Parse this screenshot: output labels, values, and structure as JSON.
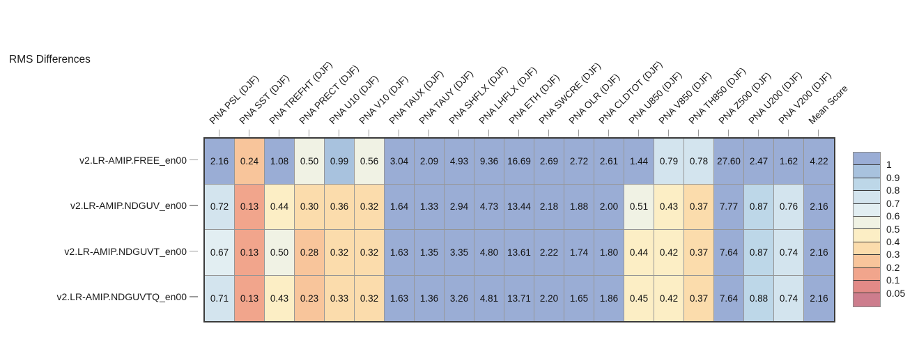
{
  "chart_data": {
    "type": "heatmap",
    "title": "RMS Differences",
    "columns": [
      "PNA PSL (DJF)",
      "PNA SST (DJF)",
      "PNA TREFHT (DJF)",
      "PNA PRECT (DJF)",
      "PNA U10 (DJF)",
      "PNA V10 (DJF)",
      "PNA TAUX (DJF)",
      "PNA TAUY (DJF)",
      "PNA SHFLX (DJF)",
      "PNA LHFLX (DJF)",
      "PNA ETH (DJF)",
      "PNA SWCRE (DJF)",
      "PNA OLR (DJF)",
      "PNA CLDTOT (DJF)",
      "PNA U850 (DJF)",
      "PNA V850 (DJF)",
      "PNA TH850 (DJF)",
      "PNA Z500 (DJF)",
      "PNA U200 (DJF)",
      "PNA V200 (DJF)",
      "Mean Score"
    ],
    "rows": [
      "v2.LR-AMIP.FREE_en00",
      "v2.LR-AMIP.NDGUV_en00",
      "v2.LR-AMIP.NDGUVT_en00",
      "v2.LR-AMIP.NDGUVTQ_en00"
    ],
    "values": [
      [
        2.16,
        0.24,
        1.08,
        0.5,
        0.99,
        0.56,
        3.04,
        2.09,
        4.93,
        9.36,
        16.69,
        2.69,
        2.72,
        2.61,
        1.44,
        0.79,
        0.78,
        27.6,
        2.47,
        1.62,
        4.22
      ],
      [
        0.72,
        0.13,
        0.44,
        0.3,
        0.36,
        0.32,
        1.64,
        1.33,
        2.94,
        4.73,
        13.44,
        2.18,
        1.88,
        2.0,
        0.51,
        0.43,
        0.37,
        7.77,
        0.87,
        0.76,
        2.16
      ],
      [
        0.67,
        0.13,
        0.5,
        0.28,
        0.32,
        0.32,
        1.63,
        1.35,
        3.35,
        4.8,
        13.61,
        2.22,
        1.74,
        1.8,
        0.44,
        0.42,
        0.37,
        7.64,
        0.87,
        0.74,
        2.16
      ],
      [
        0.71,
        0.13,
        0.43,
        0.23,
        0.33,
        0.32,
        1.63,
        1.36,
        3.26,
        4.81,
        13.71,
        2.2,
        1.65,
        1.86,
        0.45,
        0.42,
        0.37,
        7.64,
        0.88,
        0.74,
        2.16
      ]
    ],
    "value_decimals": 2,
    "grid": true,
    "legend": {
      "position": "right",
      "labels": [
        "1",
        "0.9",
        "0.8",
        "0.7",
        "0.6",
        "0.5",
        "0.4",
        "0.3",
        "0.2",
        "0.1",
        "0.05"
      ],
      "thresholds": [
        1,
        0.9,
        0.8,
        0.7,
        0.6,
        0.5,
        0.4,
        0.3,
        0.2,
        0.1,
        0.05
      ],
      "colors": [
        "#9AADD5",
        "#A8C2DE",
        "#BDD7E8",
        "#D3E4EE",
        "#E2EEF2",
        "#F0F2E4",
        "#FCEEC5",
        "#FBDCAC",
        "#F8C59B",
        "#F1A58C",
        "#E28A87",
        "#CD7D8D"
      ]
    }
  }
}
